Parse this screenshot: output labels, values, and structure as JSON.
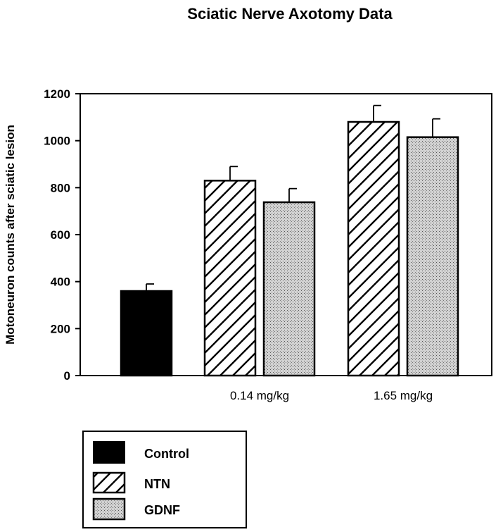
{
  "chart_data": {
    "type": "bar",
    "title": "Sciatic Nerve Axotomy Data",
    "ylabel": "Motoneuron counts after sciatic lesion",
    "xlabel": "",
    "ylim": [
      0,
      1200
    ],
    "yticks": [
      "0",
      "200",
      "400",
      "600",
      "800",
      "1000",
      "1200"
    ],
    "categories": [
      "",
      "0.14 mg/kg",
      "1.65 mg/kg"
    ],
    "series": [
      {
        "name": "Control",
        "values": [
          360,
          null,
          null
        ],
        "errors": [
          30,
          null,
          null
        ],
        "fill": "solid",
        "color": "#000000"
      },
      {
        "name": "NTN",
        "values": [
          null,
          830,
          1080
        ],
        "errors": [
          null,
          60,
          70
        ],
        "fill": "hatch",
        "color": "#ffffff"
      },
      {
        "name": "GDNF",
        "values": [
          null,
          738,
          1015
        ],
        "errors": [
          null,
          58,
          78
        ],
        "fill": "stipple",
        "color": "#c8c8c8"
      }
    ],
    "legend": {
      "placement": "bottom-left",
      "entries": [
        "Control",
        "NTN",
        "GDNF"
      ]
    }
  }
}
